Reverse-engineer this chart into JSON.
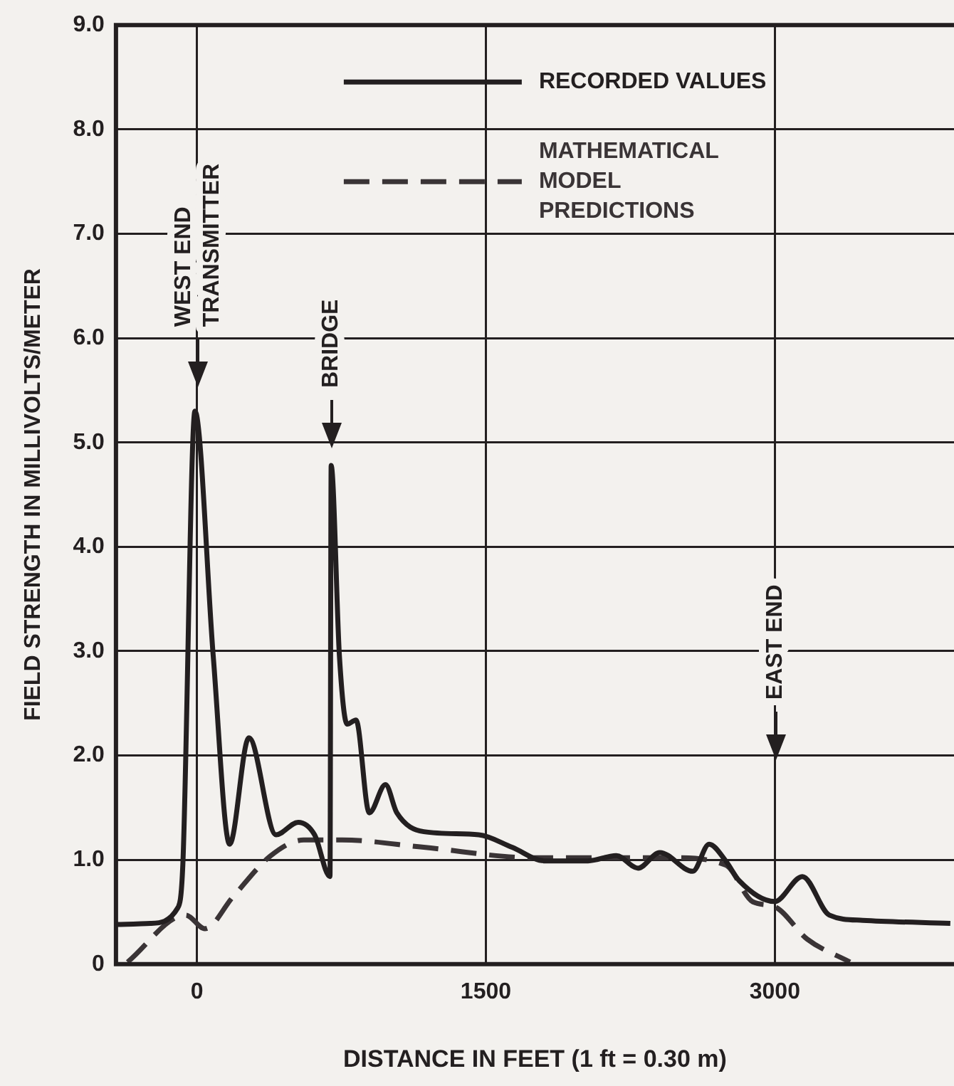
{
  "chart_data": {
    "type": "line",
    "xlabel": "DISTANCE IN FEET (1 ft = 0.30 m)",
    "ylabel": "FIELD STRENGTH IN MILLIVOLTS/METER",
    "xlim": [
      -420,
      3930
    ],
    "xticks": [
      0,
      1500,
      3000
    ],
    "ylim": [
      0,
      9
    ],
    "yticks": [
      {
        "value": 0,
        "label": "0"
      },
      {
        "value": 1,
        "label": "1.0"
      },
      {
        "value": 2,
        "label": "2.0"
      },
      {
        "value": 3,
        "label": "3.0"
      },
      {
        "value": 4,
        "label": "4.0"
      },
      {
        "value": 5,
        "label": "5.0"
      },
      {
        "value": 6,
        "label": "6.0"
      },
      {
        "value": 7,
        "label": "7.0"
      },
      {
        "value": 8,
        "label": "8.0"
      },
      {
        "value": 9,
        "label": "9.0"
      }
    ],
    "grid": true,
    "legend": "top right",
    "marker": "none",
    "series": [
      {
        "name": "RECORDED VALUES",
        "color": "#231f20",
        "line_style": "solid",
        "x": [
          -420,
          -242,
          -99,
          -73,
          -10,
          85,
          170,
          270,
          411,
          526,
          611,
          691,
          697,
          740,
          780,
          826,
          895,
          979,
          1038,
          1178,
          1463,
          1636,
          1806,
          2031,
          2177,
          2290,
          2403,
          2574,
          2659,
          2745,
          2815,
          2999,
          3143,
          3283,
          3456,
          3911
        ],
        "values": [
          0.38,
          0.39,
          0.54,
          0.95,
          5.3,
          2.95,
          1.15,
          2.17,
          1.24,
          1.36,
          1.24,
          0.84,
          4.78,
          2.95,
          2.3,
          2.34,
          1.45,
          1.72,
          1.45,
          1.27,
          1.24,
          1.12,
          0.99,
          0.99,
          1.04,
          0.92,
          1.07,
          0.89,
          1.15,
          0.99,
          0.8,
          0.6,
          0.84,
          0.47,
          0.42,
          0.39
        ]
      },
      {
        "name": "MATHEMATICAL MODEL PREDICTIONS",
        "color": "#3a3436",
        "line_style": "dashed",
        "x": [
          -360,
          -58,
          42,
          185,
          384,
          554,
          754,
          1178,
          1747,
          2461,
          2745,
          2884,
          3000,
          3168,
          3390
        ],
        "values": [
          0.02,
          0.47,
          0.34,
          0.64,
          1.04,
          1.19,
          1.19,
          1.12,
          1.02,
          1.02,
          0.95,
          0.6,
          0.55,
          0.24,
          0.02
        ]
      }
    ],
    "annotations": [
      "WEST END TRANSMITTER",
      "BRIDGE",
      "EAST END"
    ]
  }
}
